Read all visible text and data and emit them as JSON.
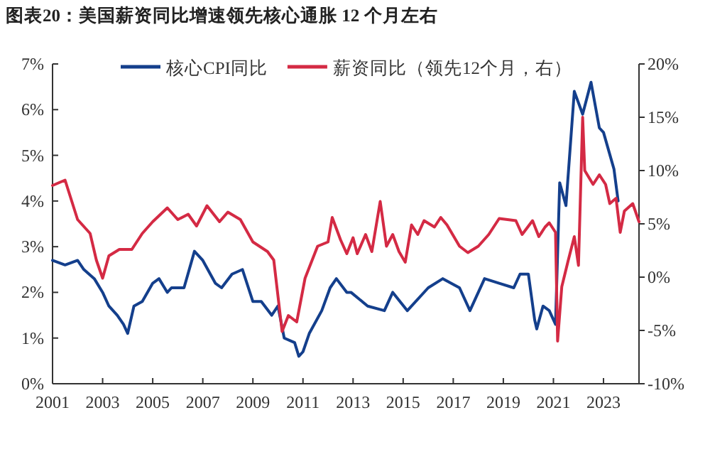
{
  "chart_data": {
    "type": "line",
    "title": "图表20：美国薪资同比增速领先核心通胀 12 个月左右",
    "xlim": [
      "2001-01",
      "2024-06"
    ],
    "xticks": [
      "2001",
      "2003",
      "2005",
      "2007",
      "2009",
      "2011",
      "2013",
      "2015",
      "2017",
      "2019",
      "2021",
      "2023"
    ],
    "ylim": [
      0,
      7
    ],
    "yticks": [
      {
        "value": 0,
        "label": "0%"
      },
      {
        "value": 1,
        "label": "1%"
      },
      {
        "value": 2,
        "label": "2%"
      },
      {
        "value": 3,
        "label": "3%"
      },
      {
        "value": 4,
        "label": "4%"
      },
      {
        "value": 5,
        "label": "5%"
      },
      {
        "value": 6,
        "label": "6%"
      },
      {
        "value": 7,
        "label": "7%"
      }
    ],
    "y2lim": [
      -10,
      20
    ],
    "y2ticks": [
      {
        "value": -10,
        "label": "-10%"
      },
      {
        "value": -5,
        "label": "-5%"
      },
      {
        "value": 0,
        "label": "0%"
      },
      {
        "value": 5,
        "label": "5%"
      },
      {
        "value": 10,
        "label": "10%"
      },
      {
        "value": 15,
        "label": "15%"
      },
      {
        "value": 20,
        "label": "20%"
      }
    ],
    "legend": "top",
    "series": [
      {
        "name": "核心CPI同比",
        "color": "#143f8c",
        "x": [
          "2001-01",
          "2001-07",
          "2002-01",
          "2002-04",
          "2002-09",
          "2003-01",
          "2003-04",
          "2003-08",
          "2003-11",
          "2004-01",
          "2004-04",
          "2004-08",
          "2005-01",
          "2005-04",
          "2005-08",
          "2005-10",
          "2006-04",
          "2006-09",
          "2007-01",
          "2007-07",
          "2007-10",
          "2008-03",
          "2008-08",
          "2009-01",
          "2009-05",
          "2009-10",
          "2010-01",
          "2010-04",
          "2010-09",
          "2010-11",
          "2011-01",
          "2011-04",
          "2011-10",
          "2012-02",
          "2012-05",
          "2012-10",
          "2012-12",
          "2013-08",
          "2014-04",
          "2014-08",
          "2015-03",
          "2016-01",
          "2016-08",
          "2017-04",
          "2017-09",
          "2018-04",
          "2018-11",
          "2019-06",
          "2019-09",
          "2020-01",
          "2020-04",
          "2020-05",
          "2020-08",
          "2020-11",
          "2021-02",
          "2021-04",
          "2021-07",
          "2021-11",
          "2022-03",
          "2022-07",
          "2022-11",
          "2023-01",
          "2023-06",
          "2023-08"
        ],
        "values": [
          2.7,
          2.6,
          2.7,
          2.5,
          2.3,
          2.0,
          1.7,
          1.5,
          1.3,
          1.1,
          1.7,
          1.8,
          2.2,
          2.3,
          2.0,
          2.1,
          2.1,
          2.9,
          2.7,
          2.2,
          2.1,
          2.4,
          2.5,
          1.8,
          1.8,
          1.5,
          1.7,
          1.0,
          0.9,
          0.6,
          0.7,
          1.1,
          1.6,
          2.1,
          2.3,
          2.0,
          2.0,
          1.7,
          1.6,
          2.0,
          1.6,
          2.1,
          2.3,
          2.1,
          1.6,
          2.3,
          2.2,
          2.1,
          2.4,
          2.4,
          1.4,
          1.2,
          1.7,
          1.6,
          1.3,
          4.4,
          3.9,
          6.4,
          5.9,
          6.6,
          5.6,
          5.5,
          4.7,
          4.0
        ]
      },
      {
        "name": "薪资同比（领先12个月，右）",
        "color": "#d42a44",
        "axis": "y2",
        "x": [
          "2001-01",
          "2001-07",
          "2002-01",
          "2002-07",
          "2002-10",
          "2003-01",
          "2003-04",
          "2003-09",
          "2004-03",
          "2004-08",
          "2005-01",
          "2005-08",
          "2006-01",
          "2006-06",
          "2006-10",
          "2007-03",
          "2007-09",
          "2008-01",
          "2008-07",
          "2009-01",
          "2009-08",
          "2009-11",
          "2010-03",
          "2010-06",
          "2010-10",
          "2011-02",
          "2011-08",
          "2012-01",
          "2012-03",
          "2012-07",
          "2012-10",
          "2013-01",
          "2013-03",
          "2013-07",
          "2013-10",
          "2014-02",
          "2014-05",
          "2014-08",
          "2014-11",
          "2015-02",
          "2015-05",
          "2015-08",
          "2015-11",
          "2016-04",
          "2016-07",
          "2016-10",
          "2017-04",
          "2017-08",
          "2018-01",
          "2018-06",
          "2018-11",
          "2019-07",
          "2019-10",
          "2020-03",
          "2020-06",
          "2020-09",
          "2020-11",
          "2021-02",
          "2021-03",
          "2021-05",
          "2021-08",
          "2021-11",
          "2022-01",
          "2022-03",
          "2022-04",
          "2022-08",
          "2022-11",
          "2023-02",
          "2023-04",
          "2023-07",
          "2023-09",
          "2023-11",
          "2024-03",
          "2024-06"
        ],
        "values": [
          8.6,
          9.1,
          5.4,
          4.1,
          1.6,
          -0.1,
          2.0,
          2.6,
          2.6,
          4.1,
          5.2,
          6.5,
          5.4,
          5.9,
          4.8,
          6.7,
          5.2,
          6.1,
          5.4,
          3.3,
          2.4,
          1.6,
          -5.1,
          -3.6,
          -4.2,
          -0.1,
          2.9,
          3.3,
          5.6,
          3.5,
          2.2,
          3.7,
          2.2,
          4.0,
          2.4,
          7.1,
          2.9,
          4.0,
          2.4,
          1.4,
          4.9,
          4.0,
          5.3,
          4.7,
          5.6,
          4.9,
          2.9,
          2.3,
          2.9,
          4.0,
          5.5,
          5.3,
          4.0,
          5.3,
          3.8,
          4.7,
          5.1,
          4.2,
          -6.0,
          -0.9,
          1.5,
          3.8,
          1.1,
          15.0,
          10.0,
          8.7,
          9.6,
          8.7,
          6.9,
          7.4,
          4.2,
          6.2,
          6.9,
          5.2
        ]
      }
    ]
  }
}
